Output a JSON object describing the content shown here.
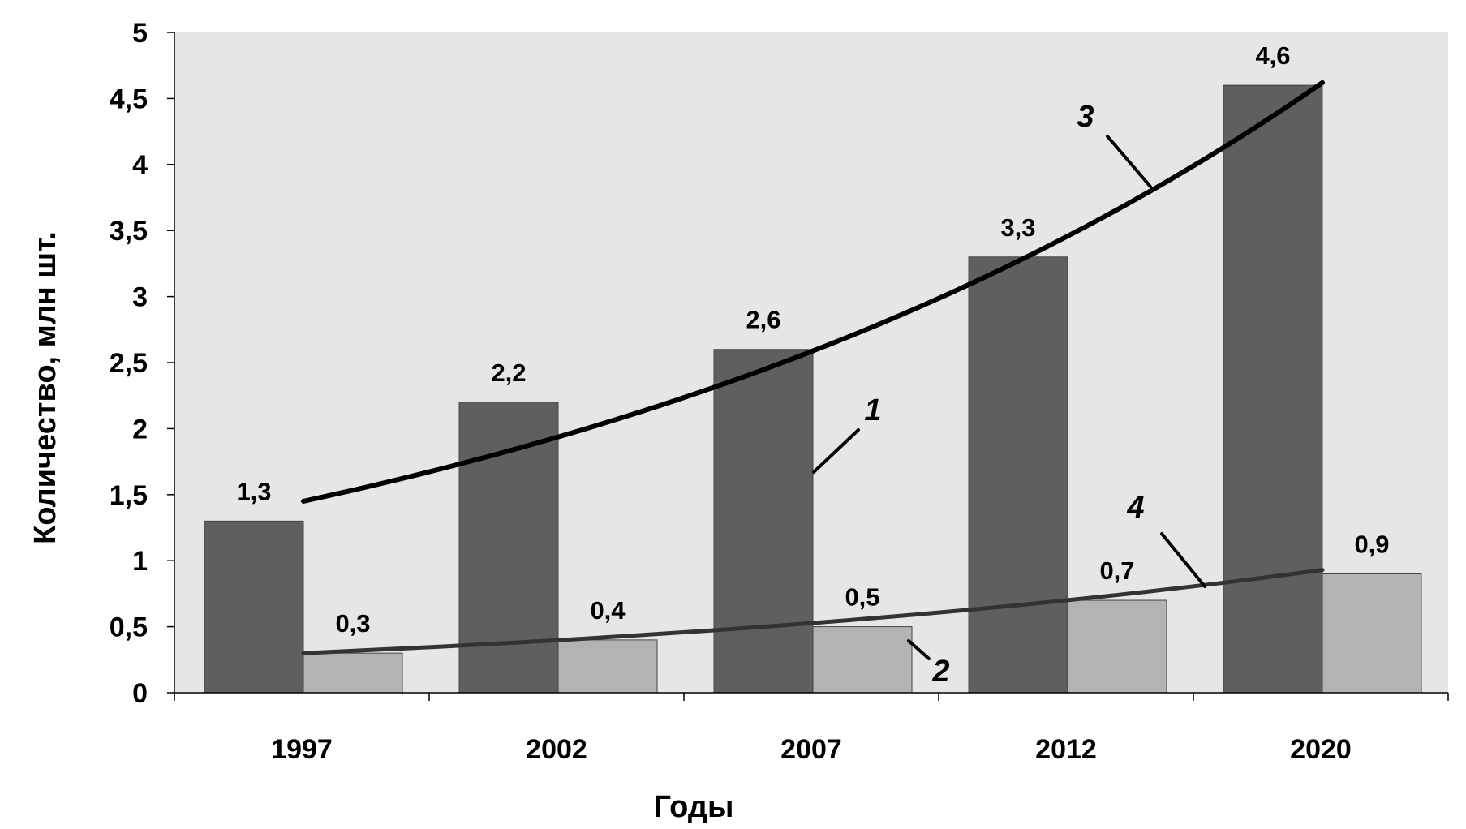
{
  "chart_data": {
    "type": "bar",
    "categories": [
      "1997",
      "2002",
      "2007",
      "2012",
      "2020"
    ],
    "series": [
      {
        "values": [
          1.3,
          2.2,
          2.6,
          3.3,
          4.6
        ],
        "color": "#5f5f5f"
      },
      {
        "values": [
          0.3,
          0.4,
          0.5,
          0.7,
          0.9
        ],
        "color": "#b3b3b3"
      }
    ],
    "data_labels": [
      [
        "1,3",
        "2,2",
        "2,6",
        "3,3",
        "4,6"
      ],
      [
        "0,3",
        "0,4",
        "0,5",
        "0,7",
        "0,9"
      ]
    ],
    "trendlines": [
      {
        "type": "exponential",
        "start_value": 1.45,
        "end_value": 4.62,
        "color": "#000000"
      },
      {
        "type": "exponential",
        "start_value": 0.3,
        "end_value": 0.93,
        "color": "#333333"
      }
    ],
    "callouts": [
      "1",
      "2",
      "3",
      "4"
    ],
    "xlabel": "Годы",
    "ylabel": "Количество, млн шт.",
    "ylim": [
      0,
      5
    ],
    "yticks": [
      0,
      0.5,
      1,
      1.5,
      2,
      2.5,
      3,
      3.5,
      4,
      4.5,
      5
    ],
    "ytick_labels": [
      "0",
      "0,5",
      "1",
      "1,5",
      "2",
      "2,5",
      "3",
      "3,5",
      "4",
      "4,5",
      "5"
    ],
    "plot_background": "#e6e6e6",
    "grid": false,
    "legend": "none"
  }
}
